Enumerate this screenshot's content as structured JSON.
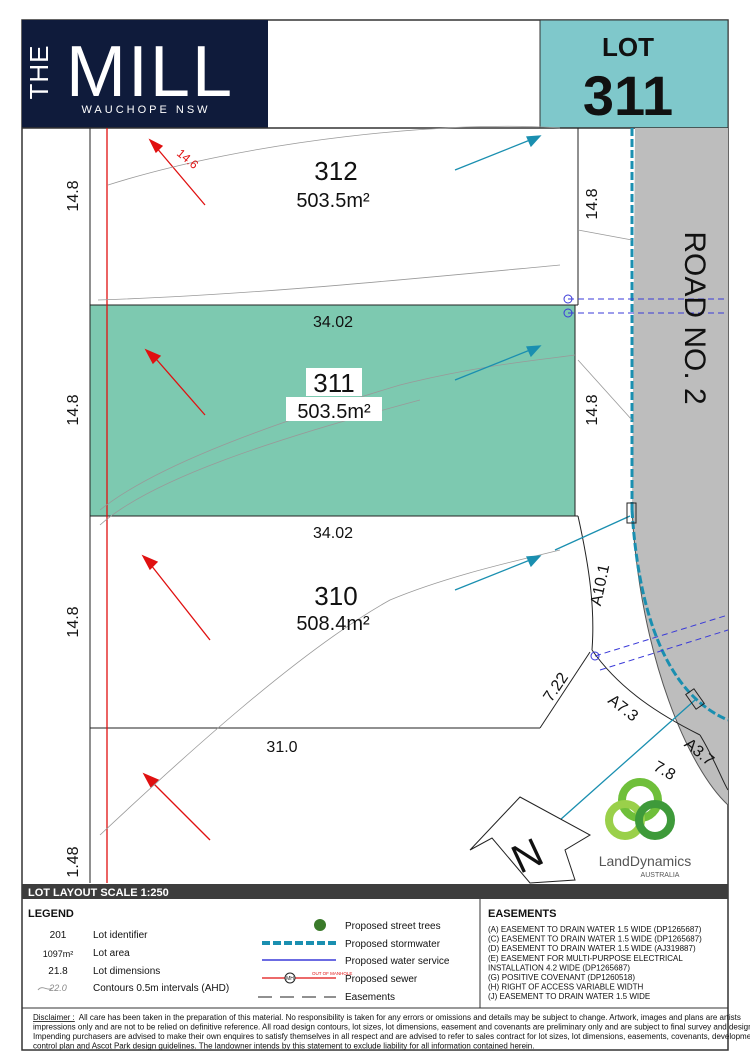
{
  "header": {
    "logo_top": "THE",
    "logo_main": "MILL",
    "logo_sub": "WAUCHOPE NSW",
    "lot_label": "LOT",
    "lot_number": "311"
  },
  "map": {
    "lots": [
      {
        "id": "312",
        "area": "503.5m²"
      },
      {
        "id": "311",
        "area": "503.5m²"
      },
      {
        "id": "310",
        "area": "508.4m²"
      }
    ],
    "dimensions": {
      "left_312": "14.8",
      "left_311": "14.8",
      "left_310": "14.8",
      "left_bottom": "1.48",
      "right_312": "14.8",
      "right_311": "14.8",
      "top_311": "34.02",
      "bottom_311": "34.02",
      "bottom_310": "31.0",
      "arc_1": "A10.1",
      "chord": "7.22",
      "arc_2": "A7.3",
      "arc_3": "A3.7",
      "partial": "7.8",
      "easement": "14.6"
    },
    "road": "ROAD NO. 2",
    "north": "N",
    "company": "LandDynamics",
    "company_sub": "AUSTRALIA"
  },
  "scale_bar": "LOT LAYOUT SCALE 1:250",
  "legend": {
    "title": "LEGEND",
    "items": [
      {
        "sample": "201",
        "label": "Lot identifier"
      },
      {
        "sample": "1097m²",
        "label": "Lot area"
      },
      {
        "sample": "21.8",
        "label": "Lot dimensions"
      },
      {
        "sample": "22.0",
        "label": "Contours 0.5m intervals (AHD)"
      }
    ],
    "symbols": [
      "Proposed street trees",
      "Proposed stormwater",
      "Proposed water service",
      "Proposed sewer",
      "Easements"
    ],
    "sewer_icon": "MH",
    "sewer_note": "OUT OF MANHOLE"
  },
  "easements": {
    "title": "EASEMENTS",
    "items": [
      "(A)   EASEMENT TO DRAIN WATER 1.5 WIDE (DP1265687)",
      "(C)   EASEMENT TO DRAIN WATER 1.5 WIDE (DP1265687)",
      "(D)   EASEMENT TO DRAIN WATER 1.5 WIDE (AJ319887)",
      "(E)   EASEMENT FOR MULTI-PURPOSE ELECTRICAL",
      "        INSTALLATION 4.2 WIDE (DP1265687)",
      "(G)   POSITIVE COVENANT (DP1260518)",
      "(H)   RIGHT OF ACCESS VARIABLE WIDTH",
      "(J)    EASEMENT TO DRAIN WATER 1.5 WIDE"
    ]
  },
  "disclaimer": {
    "label": "Disclaimer :",
    "lines": [
      "All care has been taken in the preparation of this material. No responsibility is taken for any errors or omissions and details may be subject to change. Artwork, images and plans are artists",
      "impressions only and are not to be relied on definitive reference. All road design contours, lot sizes, lot dimensions, easement and covenants are preliminary only and are subject to final survey and design.",
      "Impending purchasers are advised to make their own enquires to satisfy themselves in all respect and are advised to refer to sales contract for lot sizes, lot dimensions, easements, covenants, development",
      "control plan and Ascot Park design guidelines. The landowner intends by this statement to exclude liability for all information contained herein."
    ]
  }
}
